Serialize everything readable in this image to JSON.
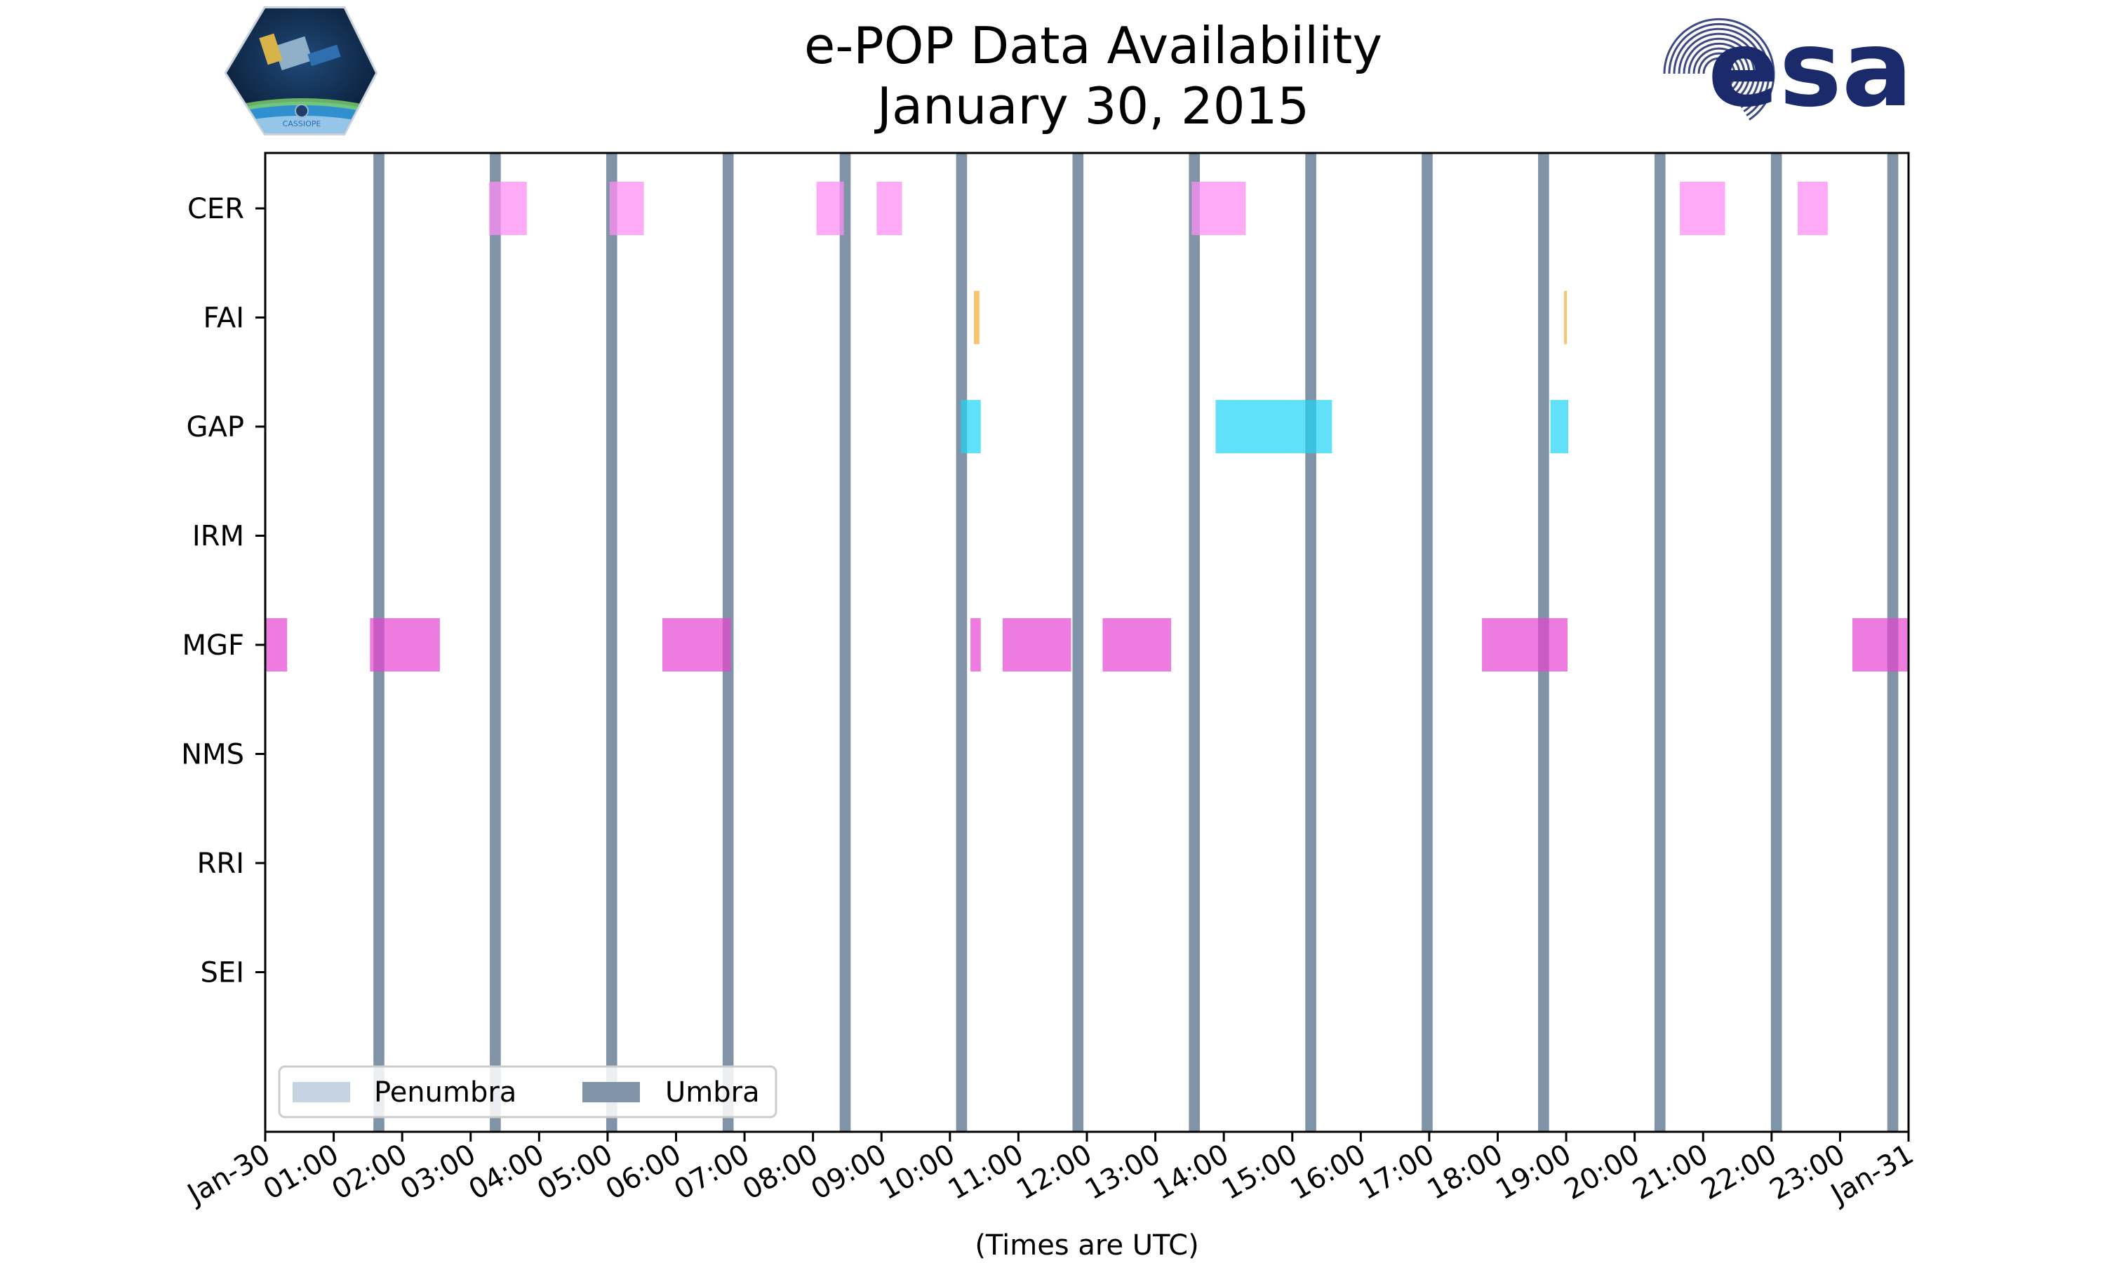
{
  "logos": {
    "left": {
      "name": "CASSIOPE",
      "text": "CASSIOPE"
    },
    "right": {
      "name": "esa",
      "text": "esa",
      "color": "#1b2a6b"
    }
  },
  "chart_data": {
    "type": "timeline",
    "title": "e-POP Data Availability",
    "subtitle": "January 30, 2015",
    "xlabel": "(Times are UTC)",
    "ylabel": "",
    "xlim": [
      0,
      24
    ],
    "x_tick_values": [
      0,
      1,
      2,
      3,
      4,
      5,
      6,
      7,
      8,
      9,
      10,
      11,
      12,
      13,
      14,
      15,
      16,
      17,
      18,
      19,
      20,
      21,
      22,
      23,
      24
    ],
    "x_tick_labels": [
      "Jan-30",
      "01:00",
      "02:00",
      "03:00",
      "04:00",
      "05:00",
      "06:00",
      "07:00",
      "08:00",
      "09:00",
      "10:00",
      "11:00",
      "12:00",
      "13:00",
      "14:00",
      "15:00",
      "16:00",
      "17:00",
      "18:00",
      "19:00",
      "20:00",
      "21:00",
      "22:00",
      "23:00",
      "Jan-31"
    ],
    "categories": [
      "CER",
      "FAI",
      "GAP",
      "IRM",
      "MGF",
      "NMS",
      "RRI",
      "SEI"
    ],
    "grid": false,
    "legend": {
      "location": "lower-left",
      "entries": [
        {
          "label": "Penumbra",
          "color": "#c5d3e3"
        },
        {
          "label": "Umbra",
          "color": "#8193a6"
        }
      ]
    },
    "umbra_intervals": [
      [
        1.58,
        1.74
      ],
      [
        3.28,
        3.44
      ],
      [
        4.98,
        5.14
      ],
      [
        6.68,
        6.84
      ],
      [
        8.39,
        8.55
      ],
      [
        10.09,
        10.25
      ],
      [
        11.79,
        11.95
      ],
      [
        13.49,
        13.65
      ],
      [
        15.19,
        15.35
      ],
      [
        16.89,
        17.05
      ],
      [
        18.59,
        18.75
      ],
      [
        20.29,
        20.45
      ],
      [
        21.99,
        22.15
      ],
      [
        23.69,
        23.85
      ]
    ],
    "series": [
      {
        "name": "CER",
        "color": "#ff8ef4",
        "opacity": 0.75,
        "intervals": [
          [
            3.27,
            3.82
          ],
          [
            5.03,
            5.53
          ],
          [
            8.05,
            8.45
          ],
          [
            8.93,
            9.3
          ],
          [
            13.53,
            14.32
          ],
          [
            20.66,
            21.32
          ],
          [
            22.38,
            22.82
          ]
        ]
      },
      {
        "name": "FAI",
        "color": "#f4b13c",
        "opacity": 0.75,
        "intervals": [
          [
            10.35,
            10.43
          ],
          [
            18.97,
            19.01
          ]
        ]
      },
      {
        "name": "GAP",
        "color": "#1ed3f6",
        "opacity": 0.7,
        "intervals": [
          [
            10.16,
            10.45
          ],
          [
            13.88,
            15.58
          ],
          [
            18.77,
            19.03
          ]
        ]
      },
      {
        "name": "IRM",
        "color": "#e743d2",
        "opacity": 0.7,
        "intervals": []
      },
      {
        "name": "MGF",
        "color": "#e743d2",
        "opacity": 0.7,
        "intervals": [
          [
            0.0,
            0.32
          ],
          [
            1.53,
            2.55
          ],
          [
            5.8,
            6.8
          ],
          [
            10.3,
            10.45
          ],
          [
            10.77,
            11.77
          ],
          [
            12.23,
            13.23
          ],
          [
            17.77,
            19.02
          ],
          [
            23.18,
            24.0
          ]
        ]
      },
      {
        "name": "NMS",
        "color": "#e743d2",
        "opacity": 0.7,
        "intervals": []
      },
      {
        "name": "RRI",
        "color": "#e743d2",
        "opacity": 0.7,
        "intervals": []
      },
      {
        "name": "SEI",
        "color": "#e743d2",
        "opacity": 0.7,
        "intervals": []
      }
    ]
  }
}
